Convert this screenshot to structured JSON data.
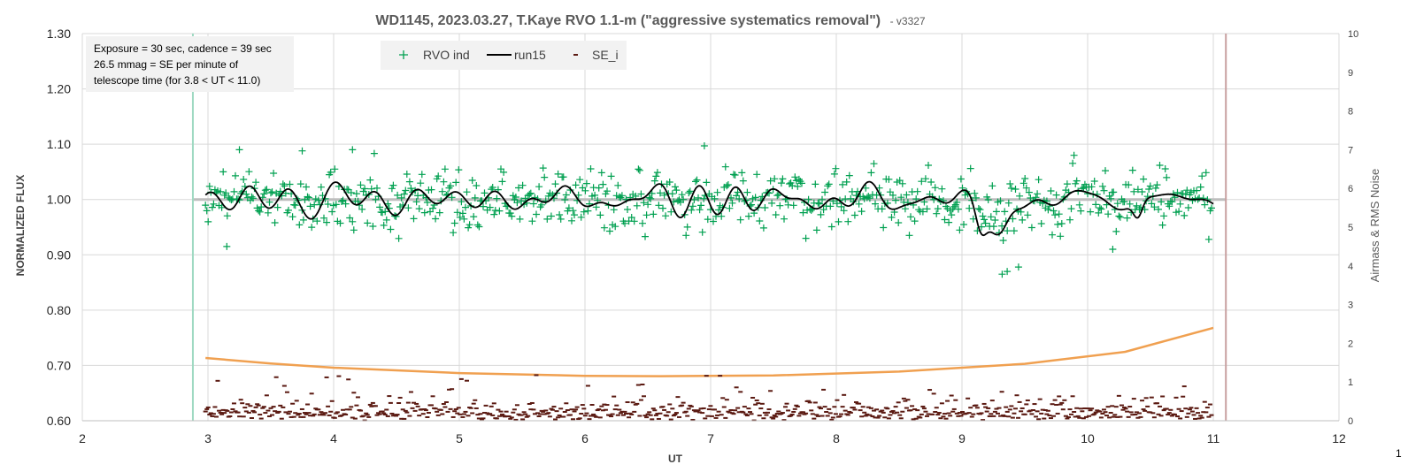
{
  "chart_data": {
    "type": "scatter",
    "title": "WD1145, 2023.03.27, T.Kaye RVO 1.1-m (\"aggressive systematics removal\")",
    "subtitle": "- v3327",
    "xlabel": "UT",
    "ylabel": "NORMALIZED FLUX",
    "y2label": "Airmass & RMS Noise",
    "xlim": [
      2,
      12
    ],
    "ylim": [
      0.6,
      1.3
    ],
    "y2lim": [
      0,
      10
    ],
    "x_ticks": [
      "2",
      "3",
      "4",
      "5",
      "6",
      "7",
      "8",
      "9",
      "10",
      "11",
      "12"
    ],
    "y_ticks": [
      "0.60",
      "0.70",
      "0.80",
      "0.90",
      "1.00",
      "1.10",
      "1.20",
      "1.30"
    ],
    "y2_ticks": [
      "0",
      "1",
      "2",
      "3",
      "4",
      "5",
      "6",
      "7",
      "8",
      "9",
      "10"
    ],
    "grid": true,
    "legend_position": "top",
    "notes": [
      "Exposure = 30 sec, cadence = 39 sec",
      "26.5 mmag = SE per minute of",
      "telescope time  (for 3.8 < UT < 11.0)"
    ],
    "reference_lines": {
      "baseline_y": 1.0,
      "start_x": 2.88,
      "end_x": 11.1
    },
    "series": [
      {
        "name": "RVO ind",
        "style": "plus-markers",
        "color": "#00a050",
        "axis": "left",
        "x_range": [
          2.98,
          11.0
        ],
        "cadence_min": 0.65,
        "center": 1.0,
        "scatter_sigma": 0.026,
        "notable_points": [
          {
            "x": 9.32,
            "y": 0.865
          },
          {
            "x": 9.36,
            "y": 0.87
          },
          {
            "x": 9.45,
            "y": 0.878
          },
          {
            "x": 6.95,
            "y": 1.097
          },
          {
            "x": 3.25,
            "y": 1.09
          },
          {
            "x": 3.75,
            "y": 1.088
          },
          {
            "x": 4.15,
            "y": 1.09
          },
          {
            "x": 10.2,
            "y": 0.91
          },
          {
            "x": 3.15,
            "y": 0.915
          }
        ]
      },
      {
        "name": "run15",
        "style": "line",
        "color": "#000000",
        "axis": "left",
        "x_range": [
          2.98,
          11.0
        ],
        "center": 1.0,
        "amplitude": 0.025,
        "dips": [
          {
            "x": 9.3,
            "depth": 0.075,
            "width": 0.1
          },
          {
            "x": 9.15,
            "depth": 0.04,
            "width": 0.06
          },
          {
            "x": 10.4,
            "depth": 0.03,
            "width": 0.05
          }
        ]
      },
      {
        "name": "SE_i",
        "style": "dash-markers",
        "color": "#5b1a12",
        "axis": "right",
        "x_range": [
          2.98,
          11.0
        ],
        "typical_range": [
          0.0,
          0.8
        ],
        "max": 1.2
      },
      {
        "name": "Airmass",
        "style": "line",
        "color": "#f0a050",
        "axis": "right",
        "points": [
          {
            "x": 2.98,
            "y": 1.62
          },
          {
            "x": 3.5,
            "y": 1.48
          },
          {
            "x": 4.0,
            "y": 1.37
          },
          {
            "x": 5.0,
            "y": 1.23
          },
          {
            "x": 6.0,
            "y": 1.16
          },
          {
            "x": 6.6,
            "y": 1.15
          },
          {
            "x": 7.5,
            "y": 1.17
          },
          {
            "x": 8.5,
            "y": 1.27
          },
          {
            "x": 9.5,
            "y": 1.47
          },
          {
            "x": 10.3,
            "y": 1.78
          },
          {
            "x": 11.0,
            "y": 2.4
          }
        ]
      }
    ]
  },
  "page_number": "1"
}
